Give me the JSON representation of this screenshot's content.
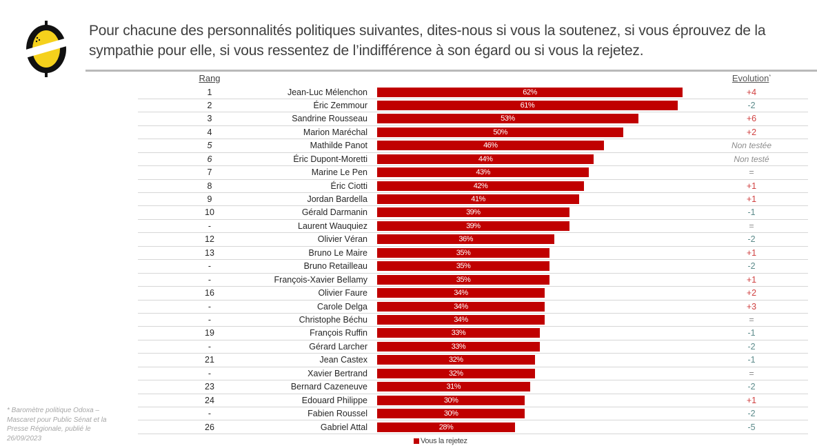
{
  "header": {
    "title": "Pour chacune des personnalités politiques suivantes, dites-nous si vous la soutenez, si vous éprouvez de la sympathie pour elle, si vous ressentez de l’indifférence à son égard ou si vous la rejetez.",
    "rank_label": "Rang",
    "evolution_label": "Evolution",
    "evolution_marker": "*"
  },
  "colors": {
    "bar": "#c00000",
    "positive": "#d04040",
    "negative": "#5b8a8a",
    "neutral": "#8c8c8c"
  },
  "legend": {
    "label": "Vous la rejetez"
  },
  "footnote": "* Baromètre politique Odoxa – Mascaret pour Public Sénat et la Presse Régionale, publié le 26/09/2023",
  "chart_data": {
    "type": "bar",
    "orientation": "horizontal",
    "title": "Pour chacune des personnalités politiques suivantes, dites-nous si vous la soutenez, si vous éprouvez de la sympathie pour elle, si vous ressentez de l’indifférence à son égard ou si vous la rejetez.",
    "series_name": "Vous la rejetez",
    "unit": "%",
    "xlim": [
      0,
      62
    ],
    "rows": [
      {
        "rank": "1",
        "rank_italic": false,
        "name": "Jean-Luc Mélenchon",
        "value": 62,
        "label": "62%",
        "evolution": "+4",
        "evo_type": "positive"
      },
      {
        "rank": "2",
        "rank_italic": false,
        "name": "Éric Zemmour",
        "value": 61,
        "label": "61%",
        "evolution": "-2",
        "evo_type": "negative"
      },
      {
        "rank": "3",
        "rank_italic": false,
        "name": "Sandrine Rousseau",
        "value": 53,
        "label": "53%",
        "evolution": "+6",
        "evo_type": "positive"
      },
      {
        "rank": "4",
        "rank_italic": false,
        "name": "Marion Maréchal",
        "value": 50,
        "label": "50%",
        "evolution": "+2",
        "evo_type": "positive"
      },
      {
        "rank": "5",
        "rank_italic": true,
        "name": "Mathilde Panot",
        "value": 46,
        "label": "46%",
        "evolution": "Non testée",
        "evo_type": "untested"
      },
      {
        "rank": "6",
        "rank_italic": true,
        "name": "Éric Dupont-Moretti",
        "value": 44,
        "label": "44%",
        "evolution": "Non testé",
        "evo_type": "untested"
      },
      {
        "rank": "7",
        "rank_italic": false,
        "name": "Marine Le Pen",
        "value": 43,
        "label": "43%",
        "evolution": "=",
        "evo_type": "neutral"
      },
      {
        "rank": "8",
        "rank_italic": false,
        "name": "Éric Ciotti",
        "value": 42,
        "label": "42%",
        "evolution": "+1",
        "evo_type": "positive"
      },
      {
        "rank": "9",
        "rank_italic": false,
        "name": "Jordan Bardella",
        "value": 41,
        "label": "41%",
        "evolution": "+1",
        "evo_type": "positive"
      },
      {
        "rank": "10",
        "rank_italic": false,
        "name": "Gérald Darmanin",
        "value": 39,
        "label": "39%",
        "evolution": "-1",
        "evo_type": "negative"
      },
      {
        "rank": "-",
        "rank_italic": false,
        "name": "Laurent Wauquiez",
        "value": 39,
        "label": "39%",
        "evolution": "=",
        "evo_type": "neutral"
      },
      {
        "rank": "12",
        "rank_italic": false,
        "name": "Olivier Véran",
        "value": 36,
        "label": "36%",
        "evolution": "-2",
        "evo_type": "negative"
      },
      {
        "rank": "13",
        "rank_italic": false,
        "name": "Bruno Le Maire",
        "value": 35,
        "label": "35%",
        "evolution": "+1",
        "evo_type": "positive"
      },
      {
        "rank": "-",
        "rank_italic": false,
        "name": "Bruno Retailleau",
        "value": 35,
        "label": "35%",
        "evolution": "-2",
        "evo_type": "negative"
      },
      {
        "rank": "-",
        "rank_italic": false,
        "name": "François-Xavier Bellamy",
        "value": 35,
        "label": "35%",
        "evolution": "+1",
        "evo_type": "positive"
      },
      {
        "rank": "16",
        "rank_italic": false,
        "name": "Olivier Faure",
        "value": 34,
        "label": "34%",
        "evolution": "+2",
        "evo_type": "positive"
      },
      {
        "rank": "-",
        "rank_italic": false,
        "name": "Carole Delga",
        "value": 34,
        "label": "34%",
        "evolution": "+3",
        "evo_type": "positive"
      },
      {
        "rank": "-",
        "rank_italic": false,
        "name": "Christophe Béchu",
        "value": 34,
        "label": "34%",
        "evolution": "=",
        "evo_type": "neutral"
      },
      {
        "rank": "19",
        "rank_italic": false,
        "name": "François Ruffin",
        "value": 33,
        "label": "33%",
        "evolution": "-1",
        "evo_type": "negative"
      },
      {
        "rank": "-",
        "rank_italic": false,
        "name": "Gérard Larcher",
        "value": 33,
        "label": "33%",
        "evolution": "-2",
        "evo_type": "negative"
      },
      {
        "rank": "21",
        "rank_italic": false,
        "name": "Jean Castex",
        "value": 32,
        "label": "32%",
        "evolution": "-1",
        "evo_type": "negative"
      },
      {
        "rank": "-",
        "rank_italic": false,
        "name": "Xavier Bertrand",
        "value": 32,
        "label": "32%",
        "evolution": "=",
        "evo_type": "neutral"
      },
      {
        "rank": "23",
        "rank_italic": false,
        "name": "Bernard Cazeneuve",
        "value": 31,
        "label": "31%",
        "evolution": "-2",
        "evo_type": "negative"
      },
      {
        "rank": "24",
        "rank_italic": false,
        "name": "Edouard Philippe",
        "value": 30,
        "label": "30%",
        "evolution": "+1",
        "evo_type": "positive"
      },
      {
        "rank": "-",
        "rank_italic": false,
        "name": "Fabien Roussel",
        "value": 30,
        "label": "30%",
        "evolution": "-2",
        "evo_type": "negative"
      },
      {
        "rank": "26",
        "rank_italic": false,
        "name": "Gabriel Attal",
        "value": 28,
        "label": "28%",
        "evolution": "-5",
        "evo_type": "negative"
      }
    ]
  }
}
